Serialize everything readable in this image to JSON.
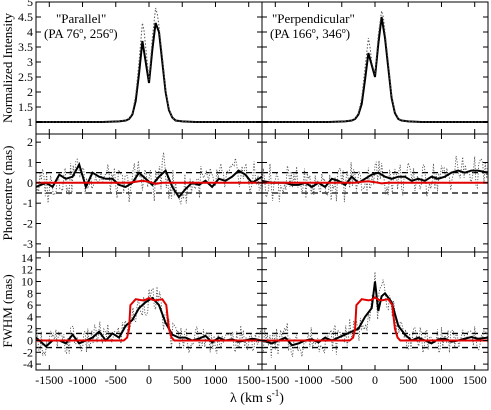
{
  "figure": {
    "xlabel_prefix": "λ (km s",
    "xlabel_sup": "-1",
    "xlabel_suffix": ")",
    "x_ticks": [
      "-1500",
      "-1000",
      "-500",
      "0",
      "500",
      "1000",
      "1500"
    ],
    "colors": {
      "observed": "#000000",
      "model": "#e00000",
      "reference": "#000000",
      "fine": "#555555"
    }
  },
  "panels": {
    "left_title_line1": "\"Parallel\"",
    "left_title_line2_a": "(PA 76",
    "left_title_line2_b": ", 256",
    "left_title_line2_c": ")",
    "right_title_line1": "\"Perpendicular\"",
    "right_title_line2_a": "(PA 166",
    "right_title_line2_b": ", 346",
    "right_title_line2_c": ")",
    "degree_mark": "o"
  },
  "chart_data": [
    {
      "type": "line",
      "panel": "intensity",
      "ylabel": "Normalized Intensity",
      "ylim": [
        0.6,
        5.0
      ],
      "y_ticks": [
        "1",
        "1.5",
        "2",
        "2.5",
        "3",
        "3.5",
        "4",
        "4.5",
        "5"
      ],
      "xlim": [
        -1700,
        1700
      ],
      "columns": [
        {
          "title": "\"Parallel\" (PA 76°, 256°)",
          "series": [
            {
              "name": "binned",
              "style": "solid",
              "x": [
                -1700,
                -1400,
                -1000,
                -700,
                -450,
                -350,
                -300,
                -250,
                -200,
                -150,
                -100,
                -50,
                0,
                50,
                100,
                150,
                200,
                250,
                300,
                350,
                400,
                500,
                700,
                1000,
                1400,
                1700
              ],
              "y": [
                1.0,
                1.0,
                1.0,
                1.0,
                1.02,
                1.05,
                1.1,
                1.25,
                1.7,
                2.6,
                3.7,
                3.0,
                2.3,
                3.4,
                4.3,
                4.0,
                3.0,
                2.0,
                1.4,
                1.15,
                1.05,
                1.02,
                1.0,
                1.0,
                1.0,
                1.0
              ]
            },
            {
              "name": "full resolution",
              "style": "dotted",
              "x": [
                -1700,
                -1400,
                -1000,
                -700,
                -450,
                -350,
                -300,
                -250,
                -200,
                -150,
                -100,
                -75,
                -50,
                0,
                50,
                100,
                125,
                150,
                200,
                250,
                300,
                350,
                400,
                500,
                700,
                1000,
                1400,
                1700
              ],
              "y": [
                1.0,
                1.0,
                1.0,
                1.0,
                1.02,
                1.06,
                1.12,
                1.3,
                1.9,
                3.0,
                4.3,
                4.05,
                3.5,
                2.4,
                3.8,
                4.8,
                4.6,
                4.2,
                3.2,
                2.1,
                1.45,
                1.15,
                1.05,
                1.02,
                1.0,
                1.0,
                1.0,
                1.0
              ]
            }
          ]
        },
        {
          "title": "\"Perpendicular\" (PA 166°, 346°)",
          "series": [
            {
              "name": "binned",
              "style": "solid",
              "x": [
                -1700,
                -1400,
                -1000,
                -700,
                -450,
                -350,
                -300,
                -250,
                -200,
                -150,
                -100,
                -50,
                0,
                50,
                100,
                150,
                200,
                250,
                300,
                350,
                400,
                500,
                700,
                1000,
                1400,
                1700
              ],
              "y": [
                1.0,
                1.0,
                1.0,
                1.0,
                1.02,
                1.05,
                1.1,
                1.25,
                1.6,
                2.4,
                3.3,
                2.9,
                2.5,
                3.6,
                4.5,
                3.8,
                2.8,
                1.8,
                1.3,
                1.1,
                1.05,
                1.02,
                1.0,
                1.0,
                1.0,
                1.0
              ]
            },
            {
              "name": "full resolution",
              "style": "dotted",
              "x": [
                -1700,
                -1400,
                -1000,
                -700,
                -450,
                -350,
                -300,
                -250,
                -200,
                -150,
                -100,
                -75,
                -50,
                0,
                50,
                100,
                125,
                150,
                200,
                250,
                300,
                350,
                400,
                500,
                700,
                1000,
                1400,
                1700
              ],
              "y": [
                1.0,
                1.0,
                1.0,
                1.0,
                1.02,
                1.06,
                1.12,
                1.3,
                1.8,
                2.8,
                3.8,
                3.5,
                3.0,
                2.6,
                3.9,
                4.7,
                4.5,
                4.0,
                3.0,
                1.9,
                1.35,
                1.12,
                1.05,
                1.02,
                1.0,
                1.0,
                1.0,
                1.0
              ]
            }
          ]
        }
      ]
    },
    {
      "type": "line",
      "panel": "photocentre",
      "ylabel": "Photocentre (mas)",
      "ylim": [
        -3.4,
        2.4
      ],
      "y_ticks": [
        "-3",
        "-2",
        "-1",
        "0",
        "1",
        "2"
      ],
      "xlim": [
        -1700,
        1700
      ],
      "reference_lines": [
        0.5,
        -0.5
      ],
      "columns": [
        {
          "series": [
            {
              "name": "binned",
              "style": "solid",
              "x": [
                -1700,
                -1550,
                -1450,
                -1350,
                -1250,
                -1150,
                -1050,
                -950,
                -850,
                -750,
                -650,
                -550,
                -450,
                -350,
                -250,
                -150,
                -50,
                50,
                150,
                250,
                350,
                450,
                550,
                650,
                750,
                850,
                950,
                1050,
                1150,
                1250,
                1350,
                1450,
                1550,
                1700
              ],
              "y": [
                -0.2,
                0.0,
                -0.2,
                0.4,
                0.2,
                0.3,
                0.9,
                -0.2,
                0.5,
                0.3,
                0.2,
                0.2,
                -0.1,
                -0.2,
                0.0,
                0.5,
                0.2,
                -0.1,
                0.3,
                0.6,
                -0.2,
                -0.7,
                -0.3,
                0.0,
                -0.1,
                0.1,
                -0.2,
                0.2,
                0.1,
                0.3,
                0.6,
                0.4,
                0.0,
                0.3
              ]
            },
            {
              "name": "model",
              "style": "red",
              "x": [
                -1700,
                -300,
                -200,
                -100,
                0,
                100,
                200,
                300,
                1700
              ],
              "y": [
                0.0,
                0.0,
                0.05,
                0.1,
                0.05,
                -0.05,
                0.0,
                0.0,
                0.0
              ]
            }
          ]
        },
        {
          "series": [
            {
              "name": "binned",
              "style": "solid",
              "x": [
                -1700,
                -1550,
                -1450,
                -1350,
                -1250,
                -1150,
                -1050,
                -950,
                -850,
                -750,
                -650,
                -550,
                -450,
                -350,
                -250,
                -150,
                -50,
                50,
                150,
                250,
                350,
                450,
                550,
                650,
                750,
                850,
                950,
                1050,
                1150,
                1250,
                1350,
                1450,
                1550,
                1700
              ],
              "y": [
                0.1,
                0.0,
                0.0,
                0.0,
                -0.1,
                -0.1,
                0.0,
                -0.2,
                0.0,
                -0.2,
                0.2,
                0.1,
                -0.1,
                0.3,
                0.0,
                0.2,
                0.4,
                0.5,
                0.3,
                0.2,
                0.3,
                0.3,
                0.1,
                0.2,
                0.1,
                0.3,
                0.2,
                0.3,
                0.5,
                0.6,
                0.5,
                0.6,
                0.6,
                0.5
              ]
            },
            {
              "name": "model",
              "style": "red",
              "x": [
                -1700,
                -300,
                -200,
                -100,
                0,
                100,
                200,
                300,
                1700
              ],
              "y": [
                0.0,
                0.0,
                0.05,
                0.08,
                0.03,
                -0.03,
                0.0,
                0.0,
                0.0
              ]
            }
          ]
        }
      ]
    },
    {
      "type": "line",
      "panel": "fwhm",
      "ylabel": "FWHM (mas)",
      "ylim": [
        -5,
        15
      ],
      "y_ticks": [
        "-4",
        "-2",
        "0",
        "2",
        "4",
        "6",
        "8",
        "10",
        "12",
        "14"
      ],
      "xlim": [
        -1700,
        1700
      ],
      "reference_lines": [
        1.2,
        -1.2
      ],
      "columns": [
        {
          "series": [
            {
              "name": "binned",
              "style": "solid",
              "x": [
                -1700,
                -1550,
                -1450,
                -1350,
                -1250,
                -1150,
                -1050,
                -950,
                -850,
                -750,
                -650,
                -550,
                -450,
                -350,
                -250,
                -150,
                -50,
                50,
                150,
                250,
                350,
                450,
                550,
                650,
                750,
                850,
                950,
                1050,
                1150,
                1250,
                1350,
                1450,
                1550,
                1700
              ],
              "y": [
                0.5,
                -1.0,
                0.0,
                0.0,
                -0.5,
                1.0,
                -0.5,
                0.0,
                0.5,
                1.5,
                0.0,
                1.2,
                0.5,
                2.5,
                3.5,
                5.5,
                6.5,
                7.2,
                6.0,
                3.0,
                1.0,
                0.5,
                0.5,
                0.0,
                0.3,
                0.8,
                -0.3,
                0.5,
                0.0,
                0.2,
                -0.2,
                0.0,
                0.3,
                0.0
              ]
            },
            {
              "name": "model",
              "style": "red",
              "x": [
                -1700,
                -380,
                -330,
                -300,
                -280,
                -200,
                -100,
                -50,
                0,
                50,
                100,
                200,
                260,
                300,
                340,
                380,
                1700
              ],
              "y": [
                0.0,
                0.0,
                0.5,
                2.0,
                6.0,
                7.0,
                6.8,
                6.9,
                7.2,
                6.9,
                6.8,
                7.0,
                6.0,
                2.0,
                0.5,
                0.0,
                0.0
              ]
            }
          ]
        },
        {
          "series": [
            {
              "name": "binned",
              "style": "solid",
              "x": [
                -1700,
                -1550,
                -1450,
                -1350,
                -1250,
                -1150,
                -1050,
                -950,
                -850,
                -750,
                -650,
                -550,
                -450,
                -350,
                -250,
                -150,
                -50,
                0,
                50,
                100,
                150,
                250,
                350,
                450,
                550,
                650,
                750,
                850,
                950,
                1050,
                1150,
                1250,
                1350,
                1450,
                1550,
                1700
              ],
              "y": [
                0.0,
                -0.5,
                0.0,
                0.5,
                -0.8,
                -0.5,
                0.0,
                0.2,
                -0.3,
                0.5,
                0.0,
                0.5,
                1.0,
                1.5,
                2.0,
                4.0,
                5.5,
                10.0,
                5.0,
                7.5,
                8.0,
                6.5,
                2.5,
                1.0,
                0.0,
                0.5,
                0.0,
                -0.5,
                0.2,
                0.3,
                -0.2,
                0.0,
                0.3,
                0.6,
                0.3,
                0.5
              ]
            },
            {
              "name": "model",
              "style": "red",
              "x": [
                -1700,
                -380,
                -330,
                -300,
                -280,
                -200,
                -100,
                -50,
                0,
                50,
                100,
                200,
                260,
                300,
                340,
                380,
                1700
              ],
              "y": [
                0.0,
                0.0,
                0.5,
                2.0,
                6.0,
                7.0,
                6.8,
                6.9,
                7.3,
                6.9,
                6.8,
                7.0,
                6.0,
                2.0,
                0.5,
                0.0,
                0.0
              ]
            }
          ]
        }
      ]
    }
  ]
}
